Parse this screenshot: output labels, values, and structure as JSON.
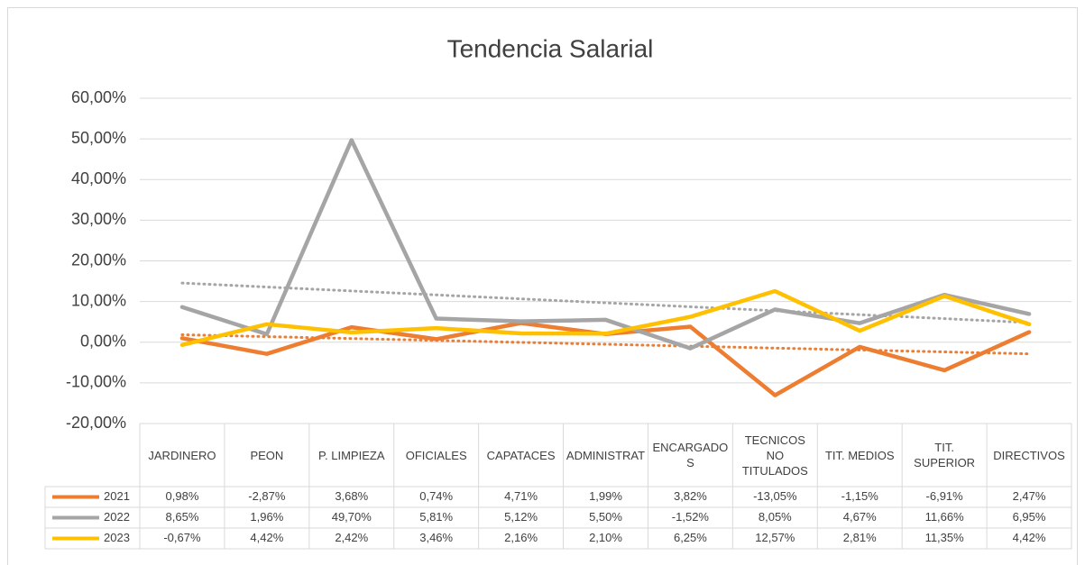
{
  "chart_data": {
    "type": "line",
    "title": "Tendencia Salarial",
    "categories": [
      "JARDINERO",
      "PEON",
      "P. LIMPIEZA",
      "OFICIALES",
      "CAPATACES",
      "ADMINISTRAT",
      "ENCARGADOS",
      "TECNICOS NO TITULADOS",
      "TIT. MEDIOS",
      "TIT. SUPERIOR",
      "DIRECTIVOS"
    ],
    "series": [
      {
        "name": "2021",
        "color": "#ED7D31",
        "trendline": true,
        "values": [
          0.98,
          -2.87,
          3.68,
          0.74,
          4.71,
          1.99,
          3.82,
          -13.05,
          -1.15,
          -6.91,
          2.47
        ],
        "value_labels": [
          "0,98%",
          "-2,87%",
          "3,68%",
          "0,74%",
          "4,71%",
          "1,99%",
          "3,82%",
          "-13,05%",
          "-1,15%",
          "-6,91%",
          "2,47%"
        ]
      },
      {
        "name": "2022",
        "color": "#A5A5A5",
        "trendline": true,
        "values": [
          8.65,
          1.96,
          49.7,
          5.81,
          5.12,
          5.5,
          -1.52,
          8.05,
          4.67,
          11.66,
          6.95
        ],
        "value_labels": [
          "8,65%",
          "1,96%",
          "49,70%",
          "5,81%",
          "5,12%",
          "5,50%",
          "-1,52%",
          "8,05%",
          "4,67%",
          "11,66%",
          "6,95%"
        ]
      },
      {
        "name": "2023",
        "color": "#FFC000",
        "trendline": false,
        "values": [
          -0.67,
          4.42,
          2.42,
          3.46,
          2.16,
          2.1,
          6.25,
          12.57,
          2.81,
          11.35,
          4.42
        ],
        "value_labels": [
          "-0,67%",
          "4,42%",
          "2,42%",
          "3,46%",
          "2,16%",
          "2,10%",
          "6,25%",
          "12,57%",
          "2,81%",
          "11,35%",
          "4,42%"
        ]
      }
    ],
    "ylim": [
      -20,
      60
    ],
    "yticks": [
      {
        "value": -20,
        "label": "-20,00%"
      },
      {
        "value": -10,
        "label": "-10,00%"
      },
      {
        "value": 0,
        "label": "0,00%"
      },
      {
        "value": 10,
        "label": "10,00%"
      },
      {
        "value": 20,
        "label": "20,00%"
      },
      {
        "value": 30,
        "label": "30,00%"
      },
      {
        "value": 40,
        "label": "40,00%"
      },
      {
        "value": 50,
        "label": "50,00%"
      },
      {
        "value": 60,
        "label": "60,00%"
      }
    ],
    "grid": true
  }
}
